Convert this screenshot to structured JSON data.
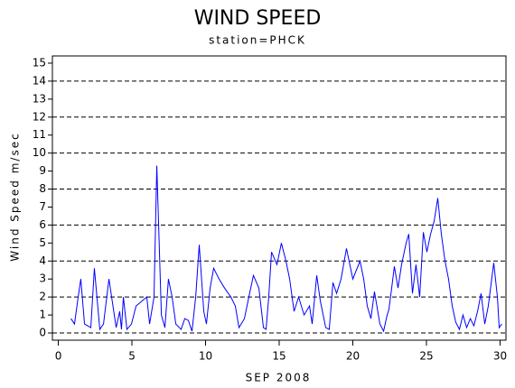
{
  "chart_data": {
    "type": "line",
    "title": "WIND SPEED",
    "subtitle": "station=PHCK",
    "y_label": "Wind Speed m/sec",
    "x_label": "SEP 2008",
    "xlim": [
      -0.4,
      30.4
    ],
    "xticks": [
      0,
      5,
      10,
      15,
      20,
      25,
      30
    ],
    "ylim": [
      -0.4,
      15.4
    ],
    "yticks": [
      0,
      1,
      2,
      3,
      4,
      5,
      6,
      7,
      8,
      9,
      10,
      11,
      12,
      13,
      14,
      15
    ],
    "grid": true,
    "grid_values": [
      0,
      2,
      4,
      6,
      8,
      10,
      12,
      14
    ],
    "series": [
      {
        "color": "#0000ff",
        "x": [
          0.86,
          1.1,
          1.35,
          1.53,
          1.78,
          2.21,
          2.45,
          2.82,
          3.07,
          3.44,
          3.93,
          4.17,
          4.29,
          4.42,
          4.66,
          4.97,
          5.28,
          6.01,
          6.2,
          6.5,
          6.69,
          7.0,
          7.24,
          7.48,
          7.73,
          7.98,
          8.34,
          8.59,
          8.83,
          9.08,
          9.33,
          9.57,
          9.88,
          10.06,
          10.31,
          10.55,
          10.92,
          11.29,
          11.72,
          12.02,
          12.27,
          12.64,
          12.94,
          13.25,
          13.62,
          13.93,
          14.11,
          14.29,
          14.48,
          14.85,
          15.15,
          15.46,
          15.71,
          16.01,
          16.32,
          16.69,
          17.06,
          17.24,
          17.55,
          17.79,
          18.16,
          18.4,
          18.65,
          18.9,
          19.2,
          19.57,
          20.0,
          20.49,
          20.74,
          20.98,
          21.23,
          21.47,
          21.84,
          22.09,
          22.33,
          22.45,
          22.64,
          22.82,
          23.07,
          23.31,
          23.62,
          23.8,
          24.05,
          24.29,
          24.54,
          24.79,
          25.03,
          25.28,
          25.52,
          25.77,
          26.01,
          26.26,
          26.5,
          26.75,
          26.99,
          27.24,
          27.48,
          27.73,
          27.98,
          28.22,
          28.47,
          28.71,
          28.96,
          29.2,
          29.57,
          29.82,
          29.94,
          30.12
        ],
        "values": [
          0.8,
          0.5,
          2,
          3,
          0.5,
          0.3,
          3.6,
          0.2,
          0.5,
          3,
          0.3,
          1.2,
          0.2,
          2,
          0.2,
          0.5,
          1.5,
          2,
          0.5,
          2,
          9.3,
          1,
          0.3,
          3,
          2,
          0.5,
          0.2,
          0.8,
          0.7,
          0.1,
          2,
          4.9,
          1.2,
          0.5,
          2.5,
          3.6,
          3,
          2.5,
          2,
          1.5,
          0.3,
          0.8,
          2,
          3.2,
          2.5,
          0.3,
          0.2,
          2,
          4.5,
          3.8,
          5,
          4,
          3,
          1.2,
          2,
          1,
          1.5,
          0.5,
          3.2,
          1.8,
          0.3,
          0.2,
          2.8,
          2.2,
          3,
          4.7,
          3,
          4,
          3,
          1.5,
          0.8,
          2.3,
          0.5,
          0.1,
          1,
          1.3,
          2.5,
          3.7,
          2.5,
          3.8,
          5,
          5.5,
          2.2,
          3.8,
          2,
          5.6,
          4.5,
          5.5,
          6.2,
          7.5,
          5.5,
          4,
          3,
          1.5,
          0.6,
          0.2,
          1,
          0.3,
          0.8,
          0.4,
          1.2,
          2.2,
          0.5,
          1.5,
          3.9,
          2,
          0.3,
          0.5
        ]
      }
    ]
  }
}
